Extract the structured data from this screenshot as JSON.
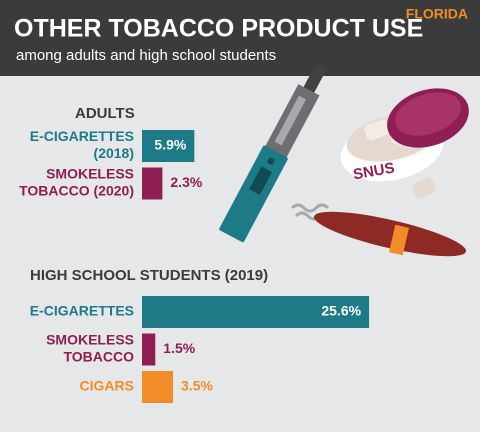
{
  "header": {
    "title": "OTHER TOBACCO PRODUCT USE",
    "subtitle": "among adults and high school students",
    "region": "FLORIDA"
  },
  "illustration": {
    "tin_label": "SNUS"
  },
  "chart_data": [
    {
      "type": "bar",
      "title": "ADULTS",
      "categories": [
        [
          "E-CIGARETTES",
          "(2018)"
        ],
        [
          "SMOKELESS",
          "TOBACCO (2020)"
        ]
      ],
      "values": [
        5.9,
        2.3
      ],
      "value_labels": [
        "5.9%",
        "2.3%"
      ],
      "colors": [
        "#1d7a87",
        "#8e1e53"
      ]
    },
    {
      "type": "bar",
      "title": "HIGH SCHOOL STUDENTS (2019)",
      "categories": [
        [
          "E-CIGARETTES"
        ],
        [
          "SMOKELESS",
          "TOBACCO"
        ],
        [
          "CIGARS"
        ]
      ],
      "values": [
        25.6,
        1.5,
        3.5
      ],
      "value_labels": [
        "25.6%",
        "1.5%",
        "3.5%"
      ],
      "colors": [
        "#1d7a87",
        "#8e1e53",
        "#f28c28"
      ]
    }
  ]
}
